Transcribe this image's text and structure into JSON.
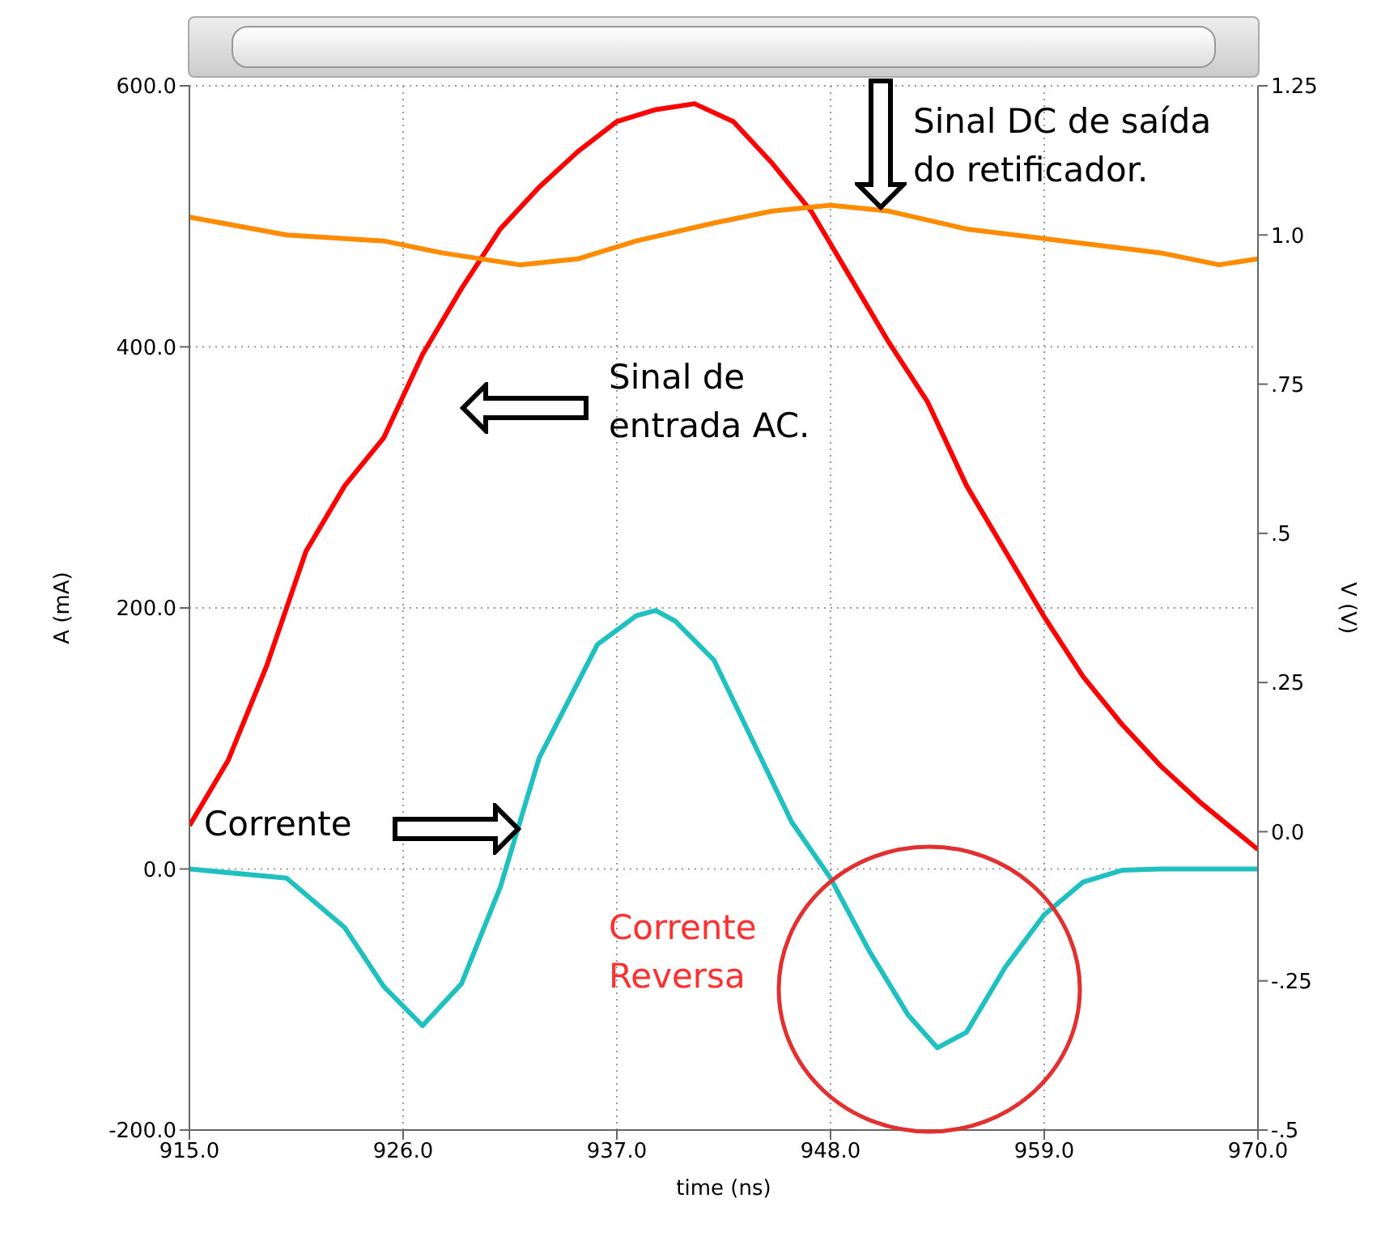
{
  "chart_data": {
    "type": "line",
    "xlabel": "time (ns)",
    "ylabel": "A (mA)",
    "y2label": "V (V)",
    "xlim": [
      915,
      970
    ],
    "xticks": [
      {
        "value": 915,
        "label": "915.0"
      },
      {
        "value": 926,
        "label": "926.0"
      },
      {
        "value": 937,
        "label": "937.0"
      },
      {
        "value": 948,
        "label": "948.0"
      },
      {
        "value": 959,
        "label": "959.0"
      },
      {
        "value": 970,
        "label": "970.0"
      }
    ],
    "ylim": [
      -200,
      600
    ],
    "yticks": [
      {
        "value": -200,
        "label": "-200.0"
      },
      {
        "value": 0,
        "label": "0.0"
      },
      {
        "value": 200,
        "label": "200.0"
      },
      {
        "value": 400,
        "label": "400.0"
      },
      {
        "value": 600,
        "label": "600.0"
      }
    ],
    "y2lim": [
      -0.5,
      1.25
    ],
    "y2ticks": [
      {
        "value": -0.5,
        "label": "-.5"
      },
      {
        "value": -0.25,
        "label": "-.25"
      },
      {
        "value": 0,
        "label": "0.0"
      },
      {
        "value": 0.25,
        "label": ".25"
      },
      {
        "value": 0.5,
        "label": ".5"
      },
      {
        "value": 0.75,
        "label": ".75"
      },
      {
        "value": 1,
        "label": "1.0"
      },
      {
        "value": 1.25,
        "label": "1.25"
      }
    ],
    "grid": true,
    "marker": "none",
    "line_style": "solid",
    "series": [
      {
        "color": "#ff0000",
        "axis": "y2",
        "x": [
          915,
          917,
          919,
          921,
          923,
          925,
          927,
          929,
          931,
          933,
          935,
          937,
          939,
          941,
          943,
          945,
          947,
          949,
          951,
          953,
          955,
          957,
          959,
          961,
          963,
          965,
          967,
          970
        ],
        "values": [
          0.01,
          0.12,
          0.28,
          0.47,
          0.58,
          0.66,
          0.8,
          0.91,
          1.01,
          1.08,
          1.14,
          1.19,
          1.21,
          1.22,
          1.19,
          1.12,
          1.04,
          0.93,
          0.82,
          0.72,
          0.58,
          0.47,
          0.36,
          0.26,
          0.18,
          0.11,
          0.05,
          -0.03
        ]
      },
      {
        "color": "#ff8c00",
        "axis": "y2",
        "x": [
          915,
          920,
          925,
          928,
          932,
          935,
          938,
          942,
          945,
          948,
          951,
          955,
          960,
          965,
          968,
          970
        ],
        "values": [
          1.03,
          1.0,
          0.99,
          0.97,
          0.95,
          0.96,
          0.99,
          1.02,
          1.04,
          1.05,
          1.04,
          1.01,
          0.99,
          0.97,
          0.95,
          0.96
        ]
      },
      {
        "color": "#20c0c0",
        "axis": "y",
        "x": [
          915,
          920,
          923,
          925,
          927,
          929,
          931,
          933,
          936,
          938,
          939,
          940,
          942,
          944,
          946,
          948,
          950,
          952,
          953.5,
          955,
          957,
          959,
          961,
          963,
          965,
          970
        ],
        "values": [
          0,
          -7,
          -45,
          -90,
          -120,
          -88,
          -14,
          85,
          172,
          194,
          198,
          190,
          160,
          98,
          36,
          -7,
          -63,
          -112,
          -137,
          -125,
          -75,
          -35,
          -10,
          -1,
          0,
          0
        ]
      }
    ],
    "annotations": [
      "Sinal DC de saída do retificador.",
      "Sinal de entrada AC.",
      "Corrente",
      "Corrente Reversa"
    ]
  }
}
